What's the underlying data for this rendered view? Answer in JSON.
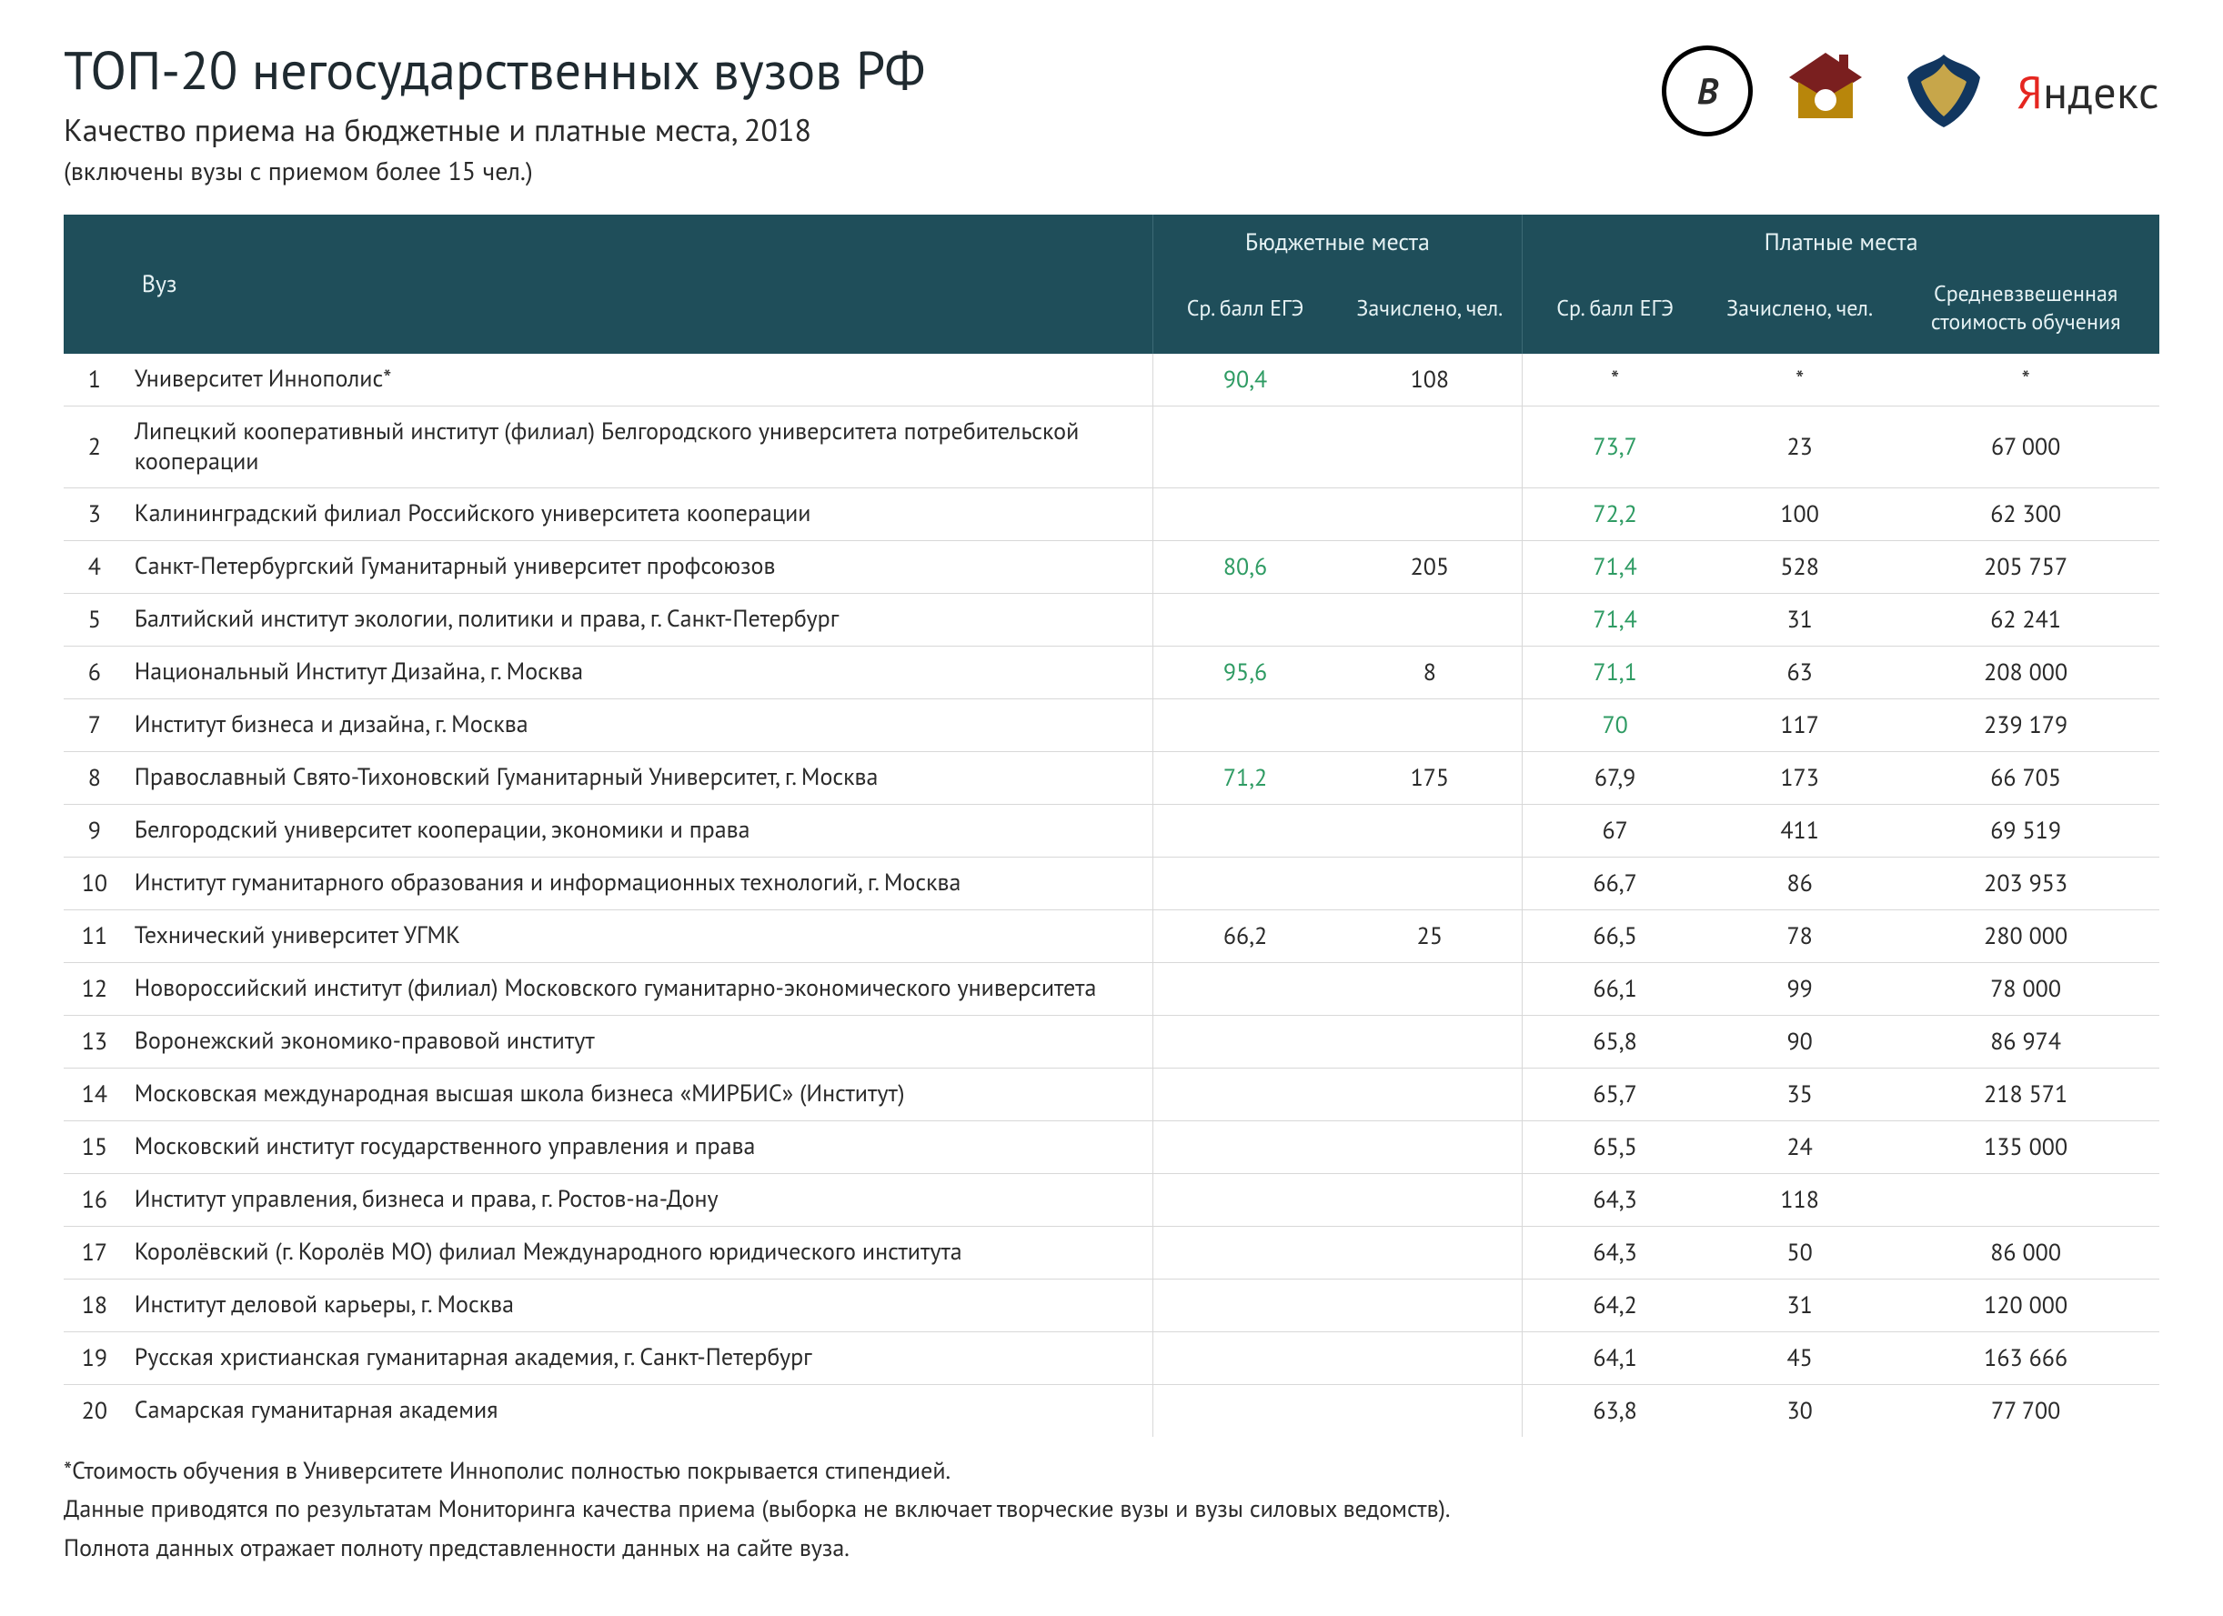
{
  "meta": {
    "title": "ТОП-20 негосударственных вузов РФ",
    "subtitle": "Качество приема на бюджетные и платные места, 2018",
    "note": "(включены вузы с приемом более 15 чел.)",
    "yandex_y": "Я",
    "yandex_rest": "ндекс",
    "hse_letter": "В"
  },
  "colors": {
    "header_bg": "#1f4e5a",
    "header_text": "#e6f2f4",
    "row_border": "#d8d8d8",
    "green": "#2e9b63",
    "text": "#2a2a2a",
    "background": "#ffffff"
  },
  "table": {
    "type": "table",
    "col_rank": "",
    "col_uni": "Вуз",
    "group_budget": "Бюджетные места",
    "group_paid": "Платные места",
    "sub_score": "Ср. балл ЕГЭ",
    "sub_enrolled": "Зачислено, чел.",
    "sub_cost": "Средневзвешенная стоимость обучения",
    "green_threshold": 70,
    "rows": [
      {
        "rank": "1",
        "uni": "Университет Иннополис*",
        "b_score": "90,4",
        "b_enr": "108",
        "p_score": "*",
        "p_enr": "*",
        "cost": "*"
      },
      {
        "rank": "2",
        "uni": "Липецкий кооперативный институт (филиал) Белгородского университета потребительской кооперации",
        "b_score": "",
        "b_enr": "",
        "p_score": "73,7",
        "p_enr": "23",
        "cost": "67 000"
      },
      {
        "rank": "3",
        "uni": "Калининградский филиал Российского университета кооперации",
        "b_score": "",
        "b_enr": "",
        "p_score": "72,2",
        "p_enr": "100",
        "cost": "62 300"
      },
      {
        "rank": "4",
        "uni": "Санкт-Петербургский Гуманитарный университет профсоюзов",
        "b_score": "80,6",
        "b_enr": "205",
        "p_score": "71,4",
        "p_enr": "528",
        "cost": "205 757"
      },
      {
        "rank": "5",
        "uni": "Балтийский институт экологии, политики и права, г. Санкт-Петербург",
        "b_score": "",
        "b_enr": "",
        "p_score": "71,4",
        "p_enr": "31",
        "cost": "62 241"
      },
      {
        "rank": "6",
        "uni": "Национальный Институт Дизайна, г. Москва",
        "b_score": "95,6",
        "b_enr": "8",
        "p_score": "71,1",
        "p_enr": "63",
        "cost": "208 000"
      },
      {
        "rank": "7",
        "uni": "Институт бизнеса и дизайна, г. Москва",
        "b_score": "",
        "b_enr": "",
        "p_score": "70",
        "p_enr": "117",
        "cost": "239 179"
      },
      {
        "rank": "8",
        "uni": "Православный Свято-Тихоновский Гуманитарный Университет, г. Москва",
        "b_score": "71,2",
        "b_enr": "175",
        "p_score": "67,9",
        "p_enr": "173",
        "cost": "66 705"
      },
      {
        "rank": "9",
        "uni": "Белгородский университет кооперации, экономики и права",
        "b_score": "",
        "b_enr": "",
        "p_score": "67",
        "p_enr": "411",
        "cost": "69 519"
      },
      {
        "rank": "10",
        "uni": "Институт гуманитарного образования и информационных технологий, г. Москва",
        "b_score": "",
        "b_enr": "",
        "p_score": "66,7",
        "p_enr": "86",
        "cost": "203 953"
      },
      {
        "rank": "11",
        "uni": "Технический университет УГМК",
        "b_score": "66,2",
        "b_enr": "25",
        "p_score": "66,5",
        "p_enr": "78",
        "cost": "280 000"
      },
      {
        "rank": "12",
        "uni": "Новороссийский институт (филиал) Московского гуманитарно-экономического университета",
        "b_score": "",
        "b_enr": "",
        "p_score": "66,1",
        "p_enr": "99",
        "cost": "78 000"
      },
      {
        "rank": "13",
        "uni": "Воронежский экономико-правовой институт",
        "b_score": "",
        "b_enr": "",
        "p_score": "65,8",
        "p_enr": "90",
        "cost": "86 974"
      },
      {
        "rank": "14",
        "uni": "Московская международная высшая школа бизнеса «МИРБИС» (Институт)",
        "b_score": "",
        "b_enr": "",
        "p_score": "65,7",
        "p_enr": "35",
        "cost": "218 571"
      },
      {
        "rank": "15",
        "uni": "Московский институт государственного управления и права",
        "b_score": "",
        "b_enr": "",
        "p_score": "65,5",
        "p_enr": "24",
        "cost": "135 000"
      },
      {
        "rank": "16",
        "uni": "Институт управления, бизнеса и права, г. Ростов-на-Дону",
        "b_score": "",
        "b_enr": "",
        "p_score": "64,3",
        "p_enr": "118",
        "cost": ""
      },
      {
        "rank": "17",
        "uni": "Королёвский (г. Королёв МО) филиал Международного юридического института",
        "b_score": "",
        "b_enr": "",
        "p_score": "64,3",
        "p_enr": "50",
        "cost": "86 000"
      },
      {
        "rank": "18",
        "uni": "Институт деловой карьеры, г. Москва",
        "b_score": "",
        "b_enr": "",
        "p_score": "64,2",
        "p_enr": "31",
        "cost": "120 000"
      },
      {
        "rank": "19",
        "uni": "Русская христианская гуманитарная академия, г. Санкт-Петербург",
        "b_score": "",
        "b_enr": "",
        "p_score": "64,1",
        "p_enr": "45",
        "cost": "163 666"
      },
      {
        "rank": "20",
        "uni": "Самарская гуманитарная академия",
        "b_score": "",
        "b_enr": "",
        "p_score": "63,8",
        "p_enr": "30",
        "cost": "77 700"
      }
    ]
  },
  "footnotes": {
    "f1": "*Стоимость обучения в Университете Иннополис полностью покрывается стипендией.",
    "f2": "Данные приводятся по результатам Мониторинга качества приема (выборка не включает творческие вузы и вузы силовых ведомств).",
    "f3": "Полнота данных отражает полноту представленности данных на сайте вуза."
  }
}
